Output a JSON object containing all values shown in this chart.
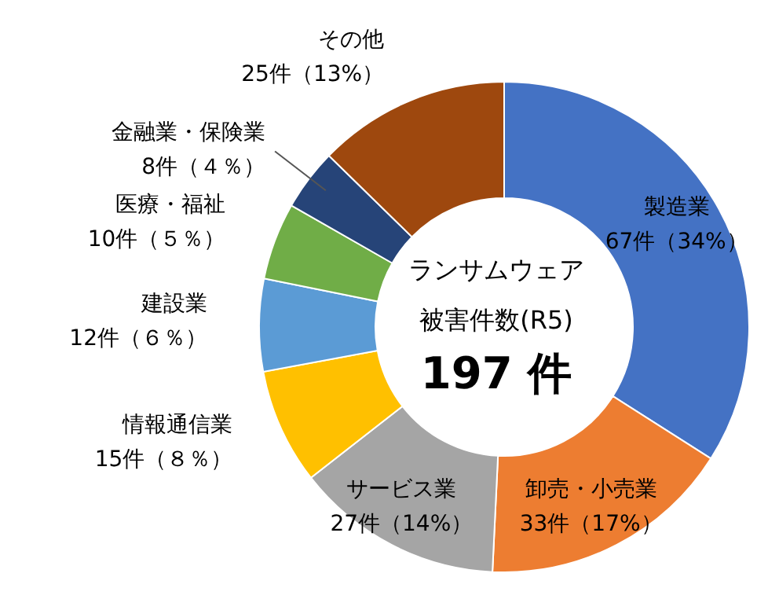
{
  "chart_data": {
    "type": "donut",
    "categories": [
      "製造業",
      "卸売・小売業",
      "サービス業",
      "情報通信業",
      "建設業",
      "医療・福祉",
      "金融業・保険業",
      "その他"
    ],
    "values": [
      67,
      33,
      27,
      15,
      12,
      10,
      8,
      25
    ],
    "value_labels": [
      "67件（34%）",
      "33件（17%）",
      "27件（14%）",
      "15件（８％）",
      "12件（６％）",
      "10件（５％）",
      "8件（４％）",
      "25件（13%）"
    ],
    "colors": [
      "#4472c4",
      "#ed7d31",
      "#a5a5a5",
      "#ffc000",
      "#5b9bd5",
      "#70ad47",
      "#264478",
      "#9e480e"
    ],
    "annotations": [
      "ランサムウェア",
      "被害件数(R5)",
      "197 件"
    ],
    "legend": false
  }
}
